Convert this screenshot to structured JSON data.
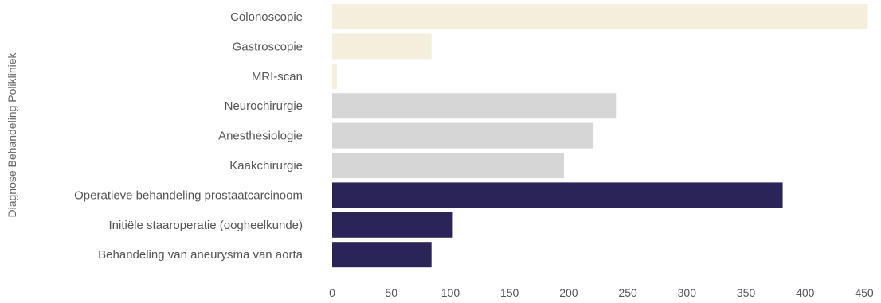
{
  "chart_data": {
    "type": "bar",
    "orientation": "horizontal",
    "ylabel": "Diagnose Behandeling Polikliniek",
    "xlabel": "",
    "xlim": [
      0,
      450
    ],
    "xticks": [
      0,
      50,
      100,
      150,
      200,
      250,
      300,
      350,
      400,
      450
    ],
    "grid": false,
    "legend": "none",
    "categories": [
      "Colonoscopie",
      "Gastroscopie",
      "MRI-scan",
      "Neurochirurgie",
      "Anesthesiologie",
      "Kaakchirurgie",
      "Operatieve behandeling prostaatcarcinoom",
      "Initiële staaroperatie (oogheelkunde)",
      "Behandeling van aneurysma van aorta"
    ],
    "values": [
      453,
      84,
      4,
      240,
      221,
      196,
      381,
      102,
      84
    ],
    "colors": [
      "#f3efdc",
      "#f3efdc",
      "#f3efdc",
      "#d6d6d6",
      "#d6d6d6",
      "#d6d6d6",
      "#2b2458",
      "#2b2458",
      "#2b2458"
    ]
  }
}
